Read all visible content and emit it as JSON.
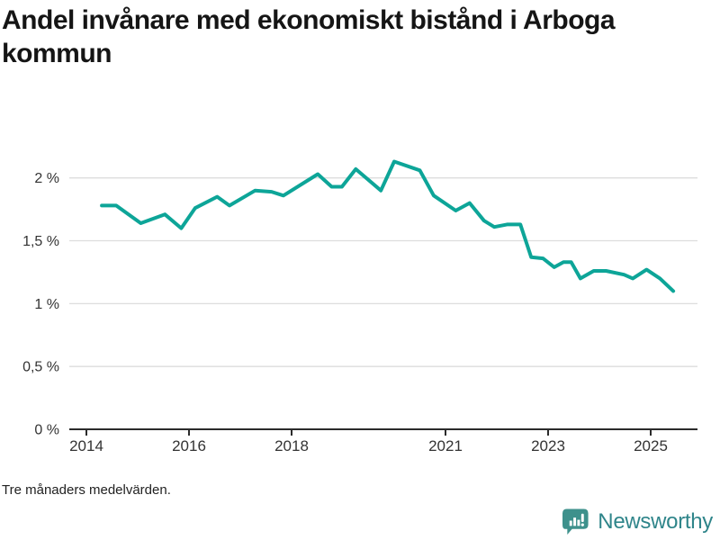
{
  "title": "Andel invånare med ekonomiskt bistånd i Arboga kommun",
  "note": "Tre månaders medelvärden.",
  "branding": {
    "logo_text": "Newsworthy",
    "logo_icon": "bar-chart-speech-bubble-icon",
    "text_color": "#2F858A",
    "icon_color": "#3E918C"
  },
  "colors": {
    "line": "#0DA598",
    "grid": "#DDDDDD",
    "axis": "#2B2B2B",
    "tick_text": "#333333"
  },
  "chart_data": {
    "type": "line",
    "title": "Andel invånare med ekonomiskt bistånd i Arboga kommun",
    "subtitle_note": "Tre månaders medelvärden.",
    "xlabel": "",
    "ylabel": "",
    "unit": "%",
    "grid": "horizontal",
    "legend": "none",
    "xlim": [
      2013.67,
      2025.92
    ],
    "ylim": [
      0,
      2.2
    ],
    "x_ticks": [
      {
        "label": "2014",
        "year": 2014
      },
      {
        "label": "2016",
        "year": 2016
      },
      {
        "label": "2018",
        "year": 2018
      },
      {
        "label": "2021",
        "year": 2021
      },
      {
        "label": "2023",
        "year": 2023
      },
      {
        "label": "2025",
        "year": 2025
      }
    ],
    "y_ticks": [
      {
        "label": "0 %",
        "value": 0
      },
      {
        "label": "0,5 %",
        "value": 0.5
      },
      {
        "label": "1 %",
        "value": 1
      },
      {
        "label": "1,5 %",
        "value": 1.5
      },
      {
        "label": "2 %",
        "value": 2
      }
    ],
    "series": [
      {
        "name": "Andel invånare med ekonomiskt bistånd, Arboga kommun",
        "points": [
          [
            2014.3,
            1.78
          ],
          [
            2014.58,
            1.78
          ],
          [
            2015.06,
            1.64
          ],
          [
            2015.53,
            1.71
          ],
          [
            2015.85,
            1.6
          ],
          [
            2016.12,
            1.76
          ],
          [
            2016.55,
            1.85
          ],
          [
            2016.79,
            1.78
          ],
          [
            2017.29,
            1.9
          ],
          [
            2017.61,
            1.89
          ],
          [
            2017.84,
            1.86
          ],
          [
            2018.51,
            2.03
          ],
          [
            2018.78,
            1.93
          ],
          [
            2018.98,
            1.93
          ],
          [
            2019.25,
            2.07
          ],
          [
            2019.74,
            1.9
          ],
          [
            2020.0,
            2.13
          ],
          [
            2020.5,
            2.06
          ],
          [
            2020.77,
            1.86
          ],
          [
            2021.2,
            1.74
          ],
          [
            2021.47,
            1.8
          ],
          [
            2021.75,
            1.66
          ],
          [
            2021.95,
            1.61
          ],
          [
            2022.2,
            1.63
          ],
          [
            2022.46,
            1.63
          ],
          [
            2022.67,
            1.37
          ],
          [
            2022.9,
            1.36
          ],
          [
            2023.12,
            1.29
          ],
          [
            2023.3,
            1.33
          ],
          [
            2023.45,
            1.33
          ],
          [
            2023.63,
            1.2
          ],
          [
            2023.89,
            1.26
          ],
          [
            2024.13,
            1.26
          ],
          [
            2024.48,
            1.23
          ],
          [
            2024.65,
            1.2
          ],
          [
            2024.92,
            1.27
          ],
          [
            2025.18,
            1.2
          ],
          [
            2025.44,
            1.1
          ]
        ]
      }
    ]
  }
}
